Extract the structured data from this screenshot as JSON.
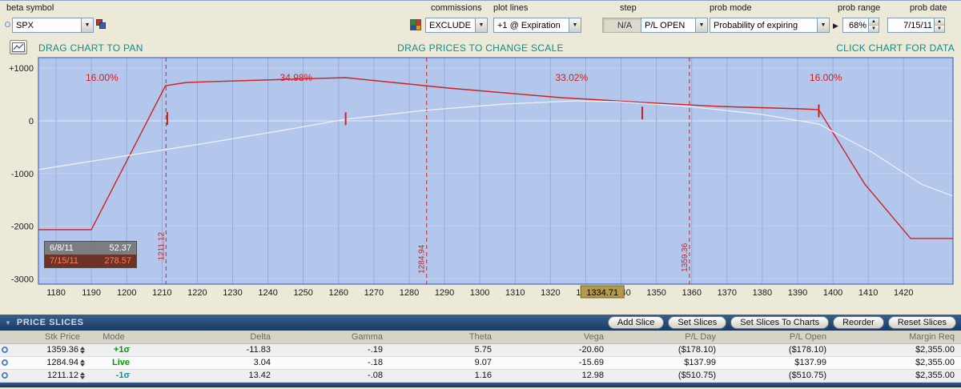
{
  "toolbar": {
    "beta_symbol_label": "beta symbol",
    "symbol_value": "SPX",
    "commissions_label": "commissions",
    "commissions_value": "EXCLUDE",
    "plot_lines_label": "plot lines",
    "plot_lines_value": "+1 @ Expiration",
    "step_label": "step",
    "step_value": "N/A",
    "prob_mode_label": "prob mode",
    "pl_mode_value": "P/L OPEN",
    "prob_mode_value": "Probability of expiring",
    "prob_range_label": "prob range",
    "prob_range_value": "68%",
    "prob_date_label": "prob date",
    "prob_date_value": "7/15/11"
  },
  "chart_header": {
    "left": "DRAG CHART TO PAN",
    "center": "DRAG PRICES TO CHANGE SCALE",
    "right": "CLICK CHART FOR DATA"
  },
  "chart_data": {
    "type": "line",
    "x_domain": [
      1175,
      1434
    ],
    "y_domain": [
      -3100,
      1200
    ],
    "x_ticks": [
      1180,
      1190,
      1200,
      1210,
      1220,
      1230,
      1240,
      1250,
      1260,
      1270,
      1280,
      1290,
      1300,
      1310,
      1320,
      1330,
      1340,
      1350,
      1360,
      1370,
      1380,
      1390,
      1400,
      1410,
      1420
    ],
    "y_ticks": [
      {
        "v": 1000,
        "label": "+1000"
      },
      {
        "v": 0,
        "label": "0"
      },
      {
        "v": -1000,
        "label": "-1000"
      },
      {
        "v": -2000,
        "label": "-2000"
      },
      {
        "v": -3000,
        "label": "-3000"
      }
    ],
    "series": [
      {
        "name": "pl-expiration",
        "color": "#cc2222",
        "width": 1.4,
        "points": [
          [
            1175,
            -2066
          ],
          [
            1190,
            -2066
          ],
          [
            1211,
            668
          ],
          [
            1217,
            729
          ],
          [
            1246,
            790
          ],
          [
            1262,
            820
          ],
          [
            1291,
            623
          ],
          [
            1323,
            441
          ],
          [
            1346,
            350
          ],
          [
            1368,
            273
          ],
          [
            1391,
            228
          ],
          [
            1396,
            212
          ],
          [
            1409,
            -1200
          ],
          [
            1422,
            -2233
          ],
          [
            1434,
            -2233
          ]
        ]
      },
      {
        "name": "pl-open",
        "color": "#eef2f8",
        "width": 1.2,
        "points": [
          [
            1175,
            -926
          ],
          [
            1198,
            -683
          ],
          [
            1221,
            -440
          ],
          [
            1244,
            -182
          ],
          [
            1262,
            30
          ],
          [
            1284,
            197
          ],
          [
            1307,
            319
          ],
          [
            1327,
            380
          ],
          [
            1339,
            365
          ],
          [
            1359,
            273
          ],
          [
            1380,
            121
          ],
          [
            1396,
            -61
          ],
          [
            1411,
            -593
          ],
          [
            1425,
            -1200
          ],
          [
            1434,
            -1428
          ]
        ]
      }
    ],
    "vlines": [
      {
        "x": 1211.12,
        "label": "1211.12",
        "label_v": -2650
      },
      {
        "x": 1284.94,
        "label": "1284.94",
        "label_v": -2900
      },
      {
        "x": 1359.36,
        "label": "1359.36",
        "label_v": -2870
      }
    ],
    "markers": [
      {
        "x": 1211.5,
        "y": 45
      },
      {
        "x": 1262,
        "y": 40
      },
      {
        "x": 1346,
        "y": 150
      },
      {
        "x": 1396,
        "y": 190
      }
    ],
    "annotations": [
      {
        "x": 1193,
        "y": 760,
        "text": "16.00%"
      },
      {
        "x": 1248,
        "y": 760,
        "text": "34.98%"
      },
      {
        "x": 1326,
        "y": 760,
        "text": "33.02%"
      },
      {
        "x": 1398,
        "y": 760,
        "text": "16.00%"
      }
    ],
    "current_price": {
      "value": "1334.71",
      "x": 1334.71
    },
    "tooltip": {
      "rows": [
        {
          "date": "6/8/11",
          "value": "52.37"
        },
        {
          "date": "7/15/11",
          "value": "278.57"
        }
      ]
    },
    "colors": {
      "plot_bg": "#b3c7ec",
      "v_grid": "#97abd8",
      "h_grid": "#c3d1ee",
      "zero_line": "#dfe8fa",
      "vline": "#cc2222",
      "annotation": "#cc2222",
      "border": "#2f55b4",
      "axis_text": "#1a1a1a",
      "price_box_bg": "#b39a4a",
      "price_box_border": "#74642a"
    }
  },
  "slices": {
    "title": "PRICE SLICES",
    "buttons": [
      "Add Slice",
      "Set Slices",
      "Set Slices To Charts",
      "Reorder",
      "Reset Slices"
    ],
    "columns": [
      "Stk Price",
      "Mode",
      "Delta",
      "Gamma",
      "Theta",
      "Vega",
      "P/L Day",
      "P/L Open",
      "Margin Req"
    ],
    "rows": [
      {
        "stk_price": "1359.36",
        "mode": "+1σ",
        "mode_color": "#009b00",
        "delta": "-11.83",
        "gamma": "-.19",
        "theta": "5.75",
        "vega": "-20.60",
        "pl_day": "($178.10)",
        "pl_open": "($178.10)",
        "margin_req": "$2,355.00"
      },
      {
        "stk_price": "1284.94",
        "mode": "Live",
        "mode_color": "#009b00",
        "delta": "3.04",
        "gamma": "-.18",
        "theta": "9.07",
        "vega": "-15.69",
        "pl_day": "$137.99",
        "pl_open": "$137.99",
        "margin_req": "$2,355.00"
      },
      {
        "stk_price": "1211.12",
        "mode": "-1σ",
        "mode_color": "#00999b",
        "delta": "13.42",
        "gamma": "-.08",
        "theta": "1.16",
        "vega": "12.98",
        "pl_day": "($510.75)",
        "pl_open": "($510.75)",
        "margin_req": "$2,355.00"
      }
    ]
  }
}
